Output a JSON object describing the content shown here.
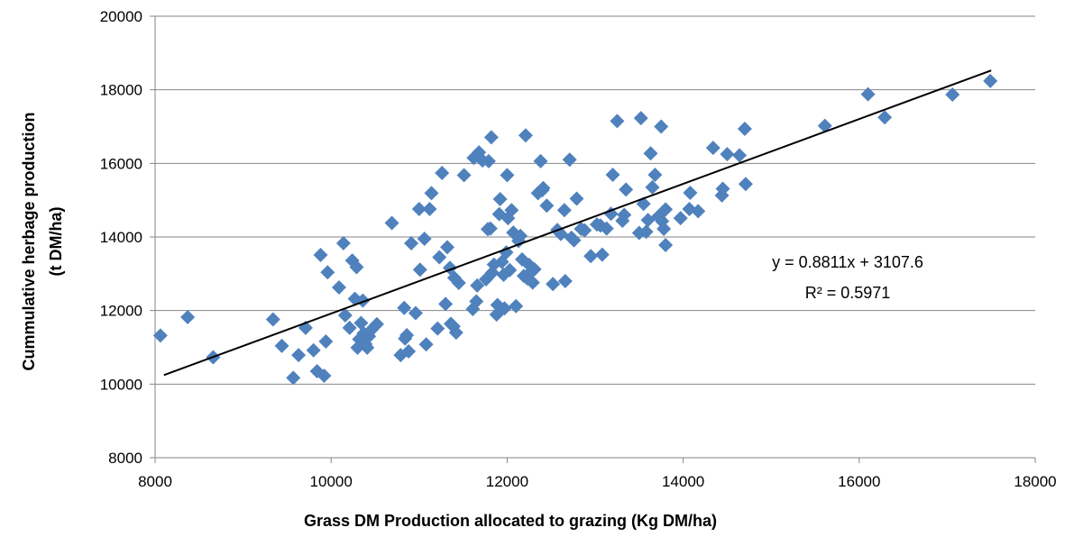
{
  "chart_data": {
    "type": "scatter",
    "xlabel": "Grass DM Production allocated to grazing (Kg DM/ha)",
    "ylabel_lines": [
      "Cummulative herbage production",
      "(t DM/ha)"
    ],
    "xlim": [
      8000,
      18000
    ],
    "ylim": [
      8000,
      20000
    ],
    "x_ticks": [
      8000,
      10000,
      12000,
      14000,
      16000,
      18000
    ],
    "y_ticks": [
      8000,
      10000,
      12000,
      14000,
      16000,
      18000,
      20000
    ],
    "x_tick_labels": [
      "8000",
      "10000",
      "12000",
      "14000",
      "16000",
      "18000"
    ],
    "y_tick_labels": [
      "8000",
      "10000",
      "12000",
      "14000",
      "16000",
      "18000",
      "20000"
    ],
    "grid": "horizontal",
    "colors": {
      "marker": "#4f81bd",
      "trendline": "#000000",
      "grid": "#868686"
    },
    "trendline": {
      "slope": 0.8811,
      "intercept": 3107.6,
      "x_range": [
        8100,
        17500
      ],
      "equation": "y = 0.8811x + 3107.6",
      "r_squared": "R² = 0.5971"
    },
    "points": [
      [
        8060,
        11320
      ],
      [
        8370,
        11820
      ],
      [
        8660,
        10730
      ],
      [
        9340,
        11760
      ],
      [
        9440,
        11040
      ],
      [
        9570,
        10170
      ],
      [
        9630,
        10790
      ],
      [
        9710,
        11530
      ],
      [
        9800,
        10920
      ],
      [
        9840,
        10350
      ],
      [
        9880,
        13510
      ],
      [
        9920,
        10230
      ],
      [
        9940,
        11160
      ],
      [
        9960,
        13040
      ],
      [
        10090,
        12630
      ],
      [
        10140,
        13830
      ],
      [
        10160,
        11870
      ],
      [
        10210,
        11530
      ],
      [
        10240,
        13360
      ],
      [
        10270,
        12320
      ],
      [
        10290,
        13180
      ],
      [
        10300,
        10990
      ],
      [
        10320,
        11220
      ],
      [
        10340,
        11660
      ],
      [
        10360,
        12270
      ],
      [
        10370,
        11380
      ],
      [
        10390,
        11090
      ],
      [
        10410,
        10990
      ],
      [
        10430,
        11300
      ],
      [
        10460,
        11480
      ],
      [
        10520,
        11630
      ],
      [
        10690,
        14380
      ],
      [
        10790,
        10790
      ],
      [
        10830,
        12070
      ],
      [
        10840,
        11240
      ],
      [
        10860,
        11330
      ],
      [
        10880,
        10890
      ],
      [
        10910,
        13830
      ],
      [
        10960,
        11930
      ],
      [
        11000,
        14760
      ],
      [
        11010,
        13110
      ],
      [
        11060,
        13950
      ],
      [
        11080,
        11080
      ],
      [
        11120,
        14760
      ],
      [
        11140,
        15190
      ],
      [
        11210,
        11510
      ],
      [
        11230,
        13450
      ],
      [
        11260,
        15740
      ],
      [
        11300,
        12180
      ],
      [
        11320,
        13720
      ],
      [
        11350,
        13160
      ],
      [
        11360,
        11640
      ],
      [
        11390,
        11570
      ],
      [
        11400,
        12890
      ],
      [
        11420,
        11400
      ],
      [
        11450,
        12750
      ],
      [
        11510,
        15680
      ],
      [
        11610,
        12040
      ],
      [
        11620,
        16150
      ],
      [
        11650,
        12250
      ],
      [
        11660,
        12680
      ],
      [
        11680,
        16300
      ],
      [
        11720,
        16080
      ],
      [
        11760,
        12850
      ],
      [
        11780,
        14210
      ],
      [
        11790,
        16060
      ],
      [
        11810,
        14230
      ],
      [
        11820,
        16710
      ],
      [
        11830,
        13030
      ],
      [
        11850,
        13250
      ],
      [
        11880,
        11890
      ],
      [
        11890,
        12150
      ],
      [
        11910,
        14620
      ],
      [
        11920,
        15030
      ],
      [
        11940,
        13320
      ],
      [
        11960,
        12970
      ],
      [
        11970,
        12060
      ],
      [
        11990,
        13580
      ],
      [
        12000,
        15680
      ],
      [
        12010,
        14510
      ],
      [
        12030,
        13100
      ],
      [
        12050,
        14730
      ],
      [
        12070,
        14120
      ],
      [
        12100,
        12120
      ],
      [
        12130,
        13890
      ],
      [
        12150,
        14030
      ],
      [
        12170,
        13390
      ],
      [
        12190,
        12940
      ],
      [
        12210,
        16760
      ],
      [
        12230,
        12870
      ],
      [
        12250,
        13240
      ],
      [
        12270,
        13050
      ],
      [
        12290,
        12760
      ],
      [
        12310,
        13120
      ],
      [
        12350,
        15190
      ],
      [
        12380,
        16060
      ],
      [
        12400,
        15270
      ],
      [
        12410,
        15330
      ],
      [
        12450,
        14850
      ],
      [
        12520,
        12720
      ],
      [
        12570,
        14190
      ],
      [
        12610,
        14080
      ],
      [
        12650,
        14730
      ],
      [
        12660,
        12800
      ],
      [
        12710,
        16100
      ],
      [
        12730,
        13980
      ],
      [
        12760,
        13910
      ],
      [
        12790,
        15040
      ],
      [
        12840,
        14220
      ],
      [
        12880,
        14180
      ],
      [
        12950,
        13480
      ],
      [
        13020,
        14340
      ],
      [
        13060,
        14310
      ],
      [
        13080,
        13520
      ],
      [
        13130,
        14230
      ],
      [
        13180,
        14630
      ],
      [
        13200,
        15690
      ],
      [
        13250,
        17150
      ],
      [
        13310,
        14440
      ],
      [
        13330,
        14600
      ],
      [
        13350,
        15290
      ],
      [
        13500,
        14110
      ],
      [
        13520,
        17230
      ],
      [
        13550,
        14900
      ],
      [
        13580,
        14140
      ],
      [
        13600,
        14460
      ],
      [
        13630,
        16270
      ],
      [
        13650,
        15350
      ],
      [
        13680,
        15690
      ],
      [
        13720,
        14560
      ],
      [
        13750,
        17000
      ],
      [
        13760,
        14430
      ],
      [
        13780,
        14220
      ],
      [
        13800,
        13780
      ],
      [
        13800,
        14750
      ],
      [
        13970,
        14510
      ],
      [
        14070,
        14760
      ],
      [
        14080,
        15200
      ],
      [
        14170,
        14700
      ],
      [
        14340,
        16420
      ],
      [
        14440,
        15130
      ],
      [
        14450,
        15310
      ],
      [
        14500,
        16250
      ],
      [
        14640,
        16220
      ],
      [
        14700,
        16940
      ],
      [
        14710,
        15440
      ],
      [
        15610,
        17020
      ],
      [
        16100,
        17880
      ],
      [
        16290,
        17250
      ],
      [
        17060,
        17870
      ],
      [
        17490,
        18240
      ]
    ]
  }
}
